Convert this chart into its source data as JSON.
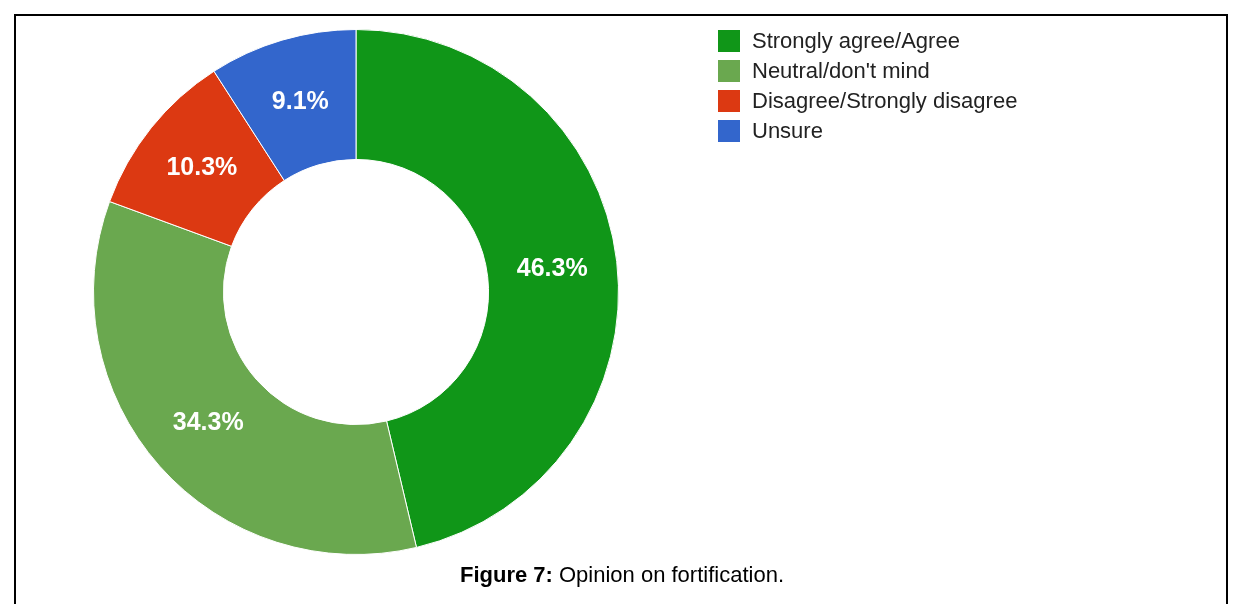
{
  "chart_data": {
    "type": "donut",
    "categories": [
      "Strongly agree/Agree",
      "Neutral/don't mind",
      "Disagree/Strongly disagree",
      "Unsure"
    ],
    "values": [
      46.3,
      34.3,
      10.3,
      9.1
    ],
    "colors": [
      "#109618",
      "#6aa84f",
      "#dc3912",
      "#3366cc"
    ],
    "value_labels": [
      "46.3%",
      "34.3%",
      "10.3%",
      "9.1%"
    ],
    "legend": "top right",
    "annotations": [
      "Figure 7: Opinion on fortification."
    ]
  }
}
